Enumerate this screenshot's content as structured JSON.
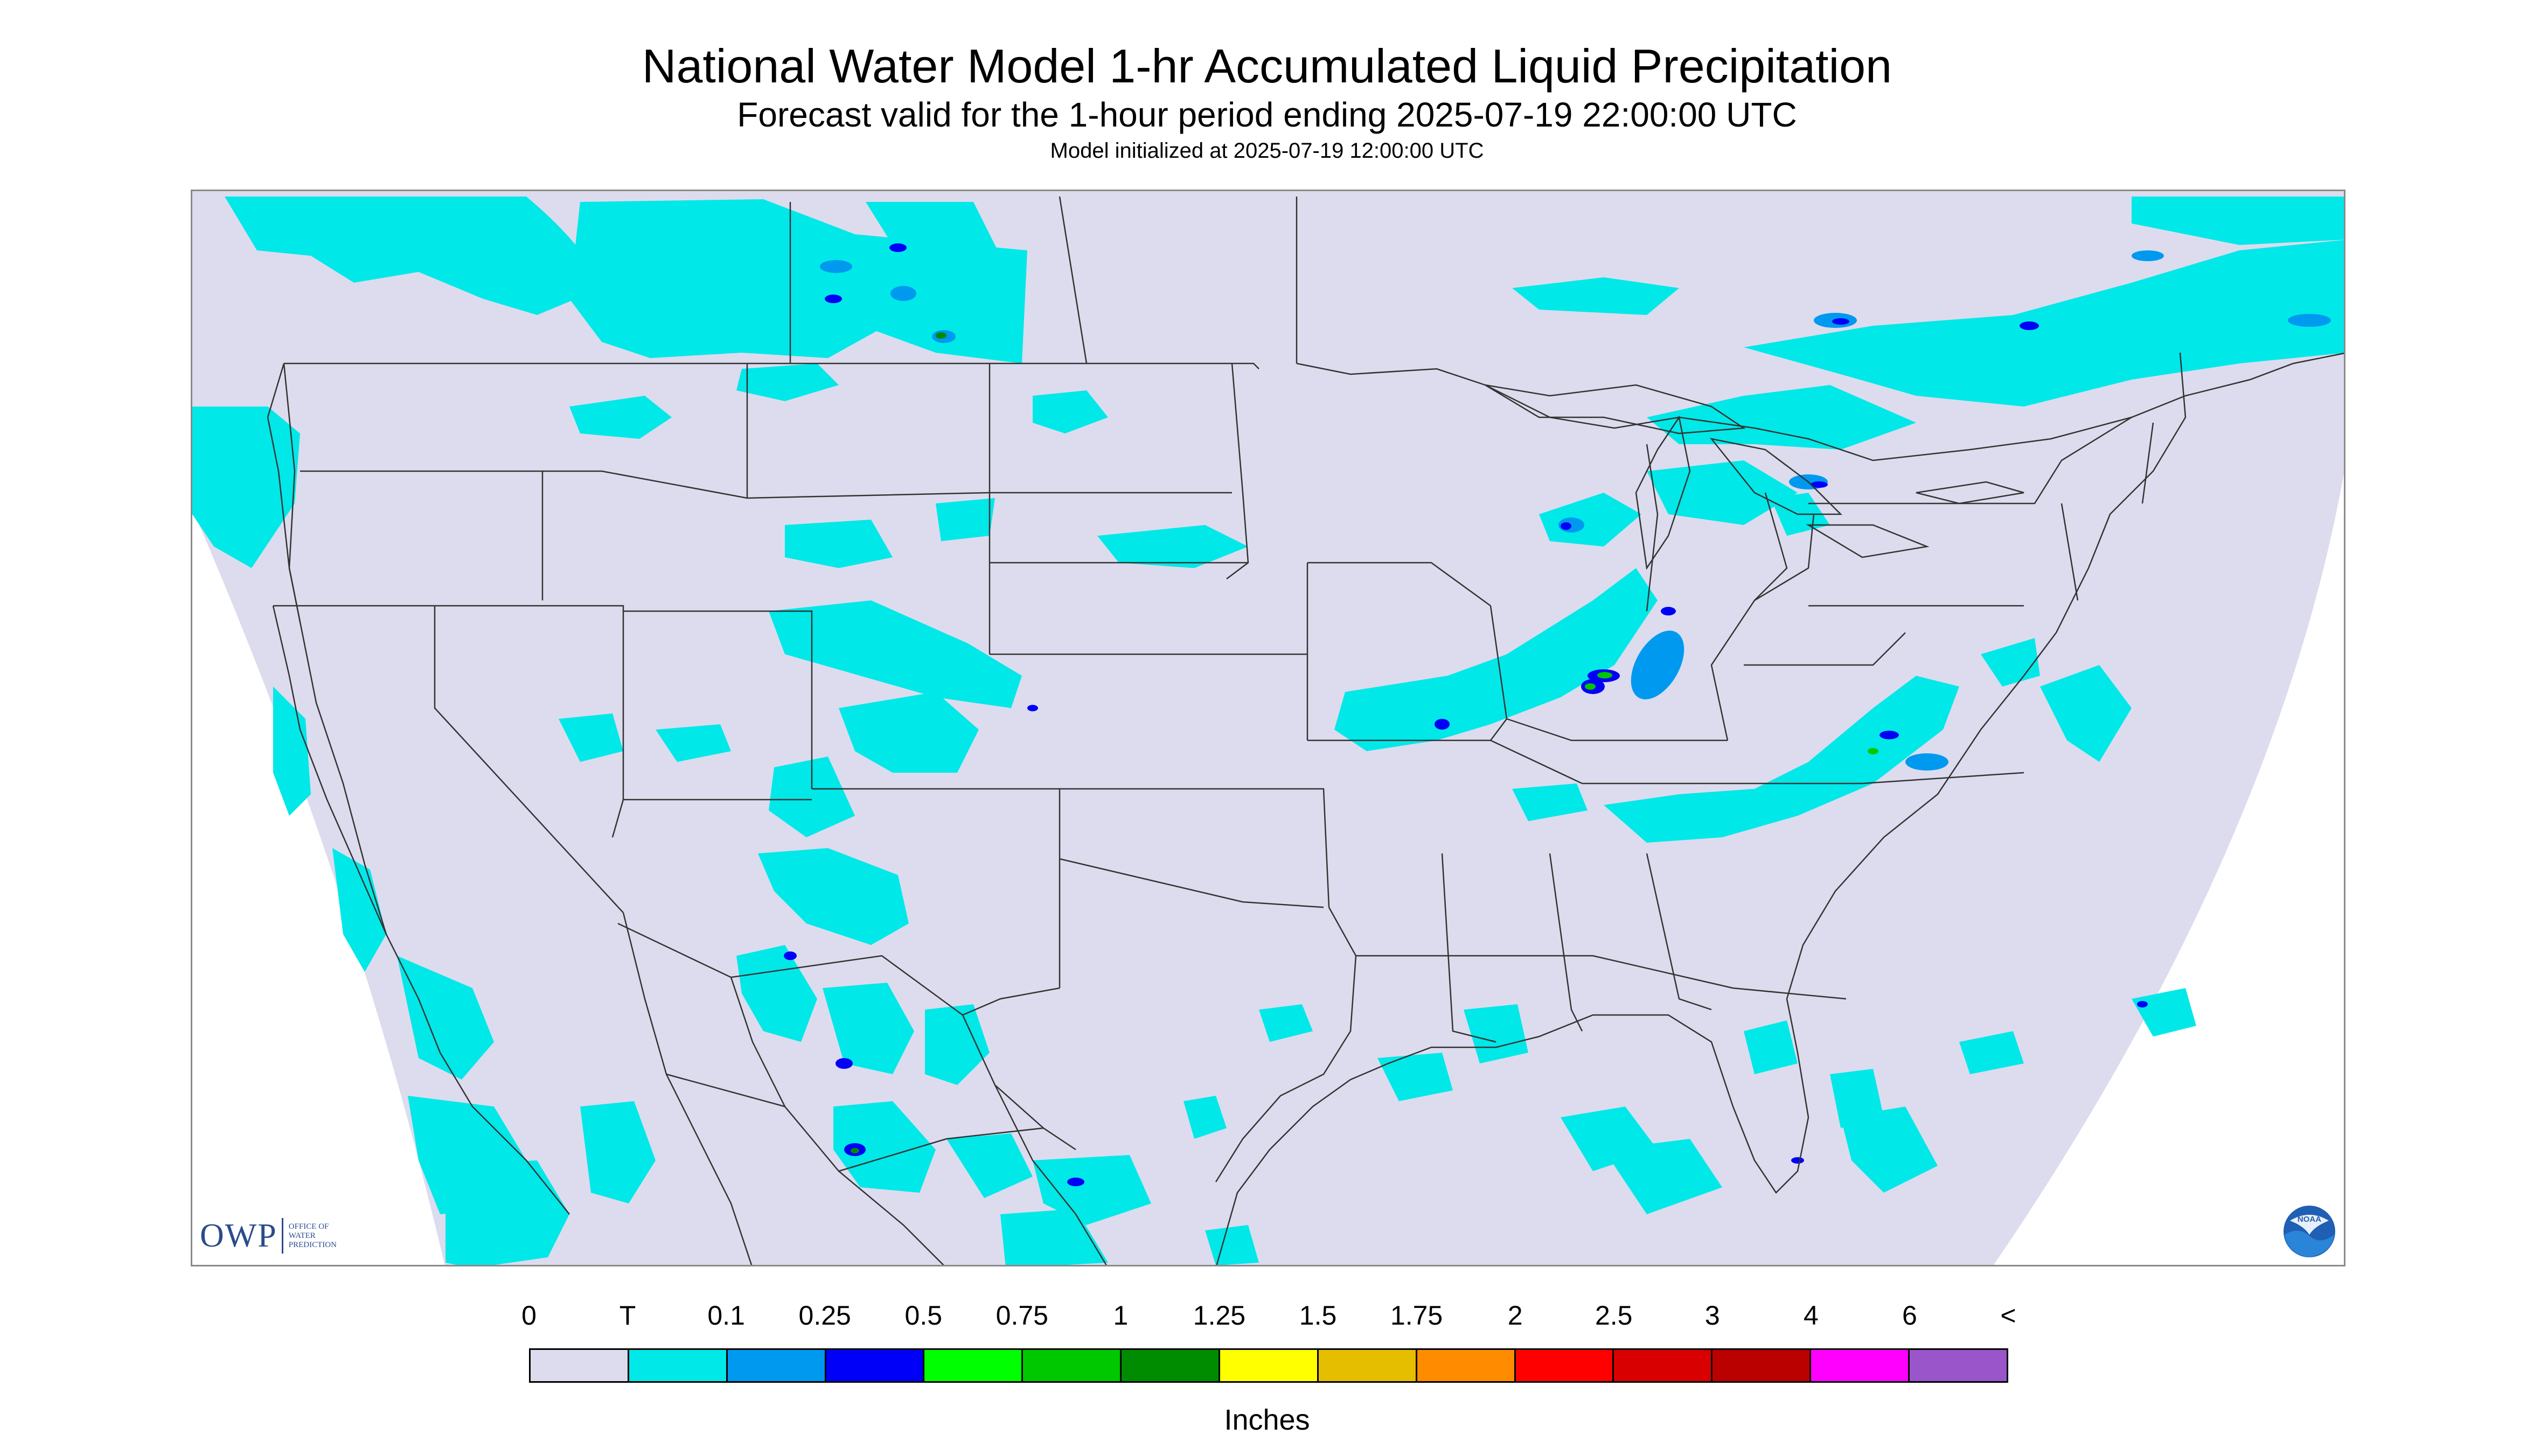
{
  "title": "National Water Model 1-hr Accumulated Liquid Precipitation",
  "subtitle": "Forecast valid for the 1-hour period ending 2025-07-19 22:00:00 UTC",
  "init_line": "Model initialized at 2025-07-19 12:00:00 UTC",
  "colors": {
    "map_fill": "#dcdcee",
    "outside_fill": "#ffffff",
    "boundary_line": "#333333",
    "frame": "#8a8a8a",
    "logo_blue": "#2b4c8c"
  },
  "legend": {
    "ticks": [
      "0",
      "T",
      "0.1",
      "0.25",
      "0.5",
      "0.75",
      "1",
      "1.25",
      "1.5",
      "1.75",
      "2",
      "2.5",
      "3",
      "4",
      "6",
      "<"
    ],
    "colors": [
      "#dcdcee",
      "#00e8e8",
      "#0099f0",
      "#0000f8",
      "#00ff00",
      "#00c800",
      "#008c00",
      "#ffff00",
      "#e6be00",
      "#ff8c00",
      "#ff0000",
      "#d80000",
      "#bb0000",
      "#ff00ff",
      "#9955c9"
    ],
    "units": "Inches"
  },
  "logos": {
    "owp": {
      "name": "owp-logo",
      "text": "OWP",
      "subtext": [
        "OFFICE OF",
        "WATER",
        "PREDICTION"
      ]
    },
    "noaa": {
      "name": "noaa-logo",
      "text": "NOAA"
    }
  }
}
